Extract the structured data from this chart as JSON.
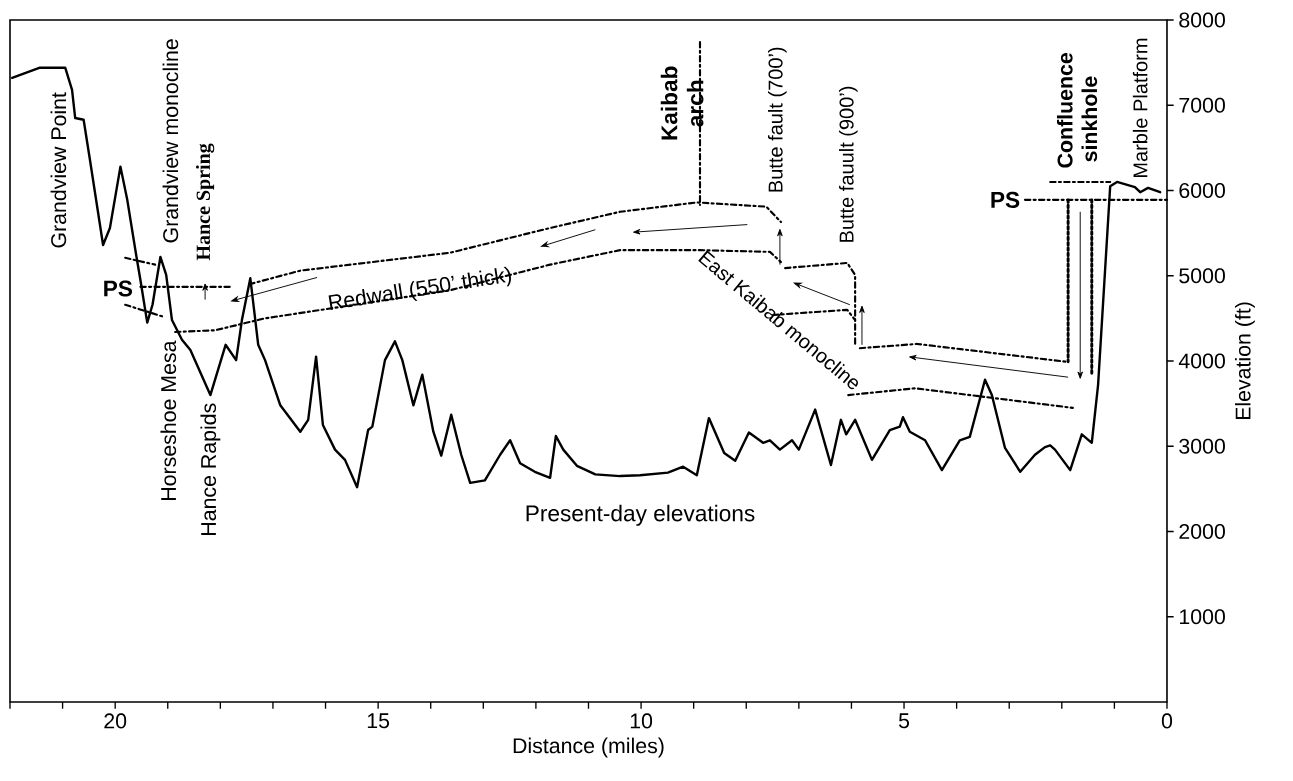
{
  "chart_data": {
    "type": "line",
    "xlabel": "Distance (miles)",
    "ylabel": "Elevation (ft)",
    "xlim": [
      22,
      0
    ],
    "ylim": [
      0,
      8000
    ],
    "xticks": [
      {
        "value": 22,
        "label": null
      },
      {
        "value": 21,
        "label": null
      },
      20,
      {
        "value": 19,
        "label": null
      },
      {
        "value": 18,
        "label": null
      },
      {
        "value": 17,
        "label": null
      },
      {
        "value": 16,
        "label": null
      },
      15,
      {
        "value": 14,
        "label": null
      },
      {
        "value": 13,
        "label": null
      },
      {
        "value": 12,
        "label": null
      },
      {
        "value": 11,
        "label": null
      },
      10,
      {
        "value": 9,
        "label": null
      },
      {
        "value": 8,
        "label": null
      },
      {
        "value": 7,
        "label": null
      },
      {
        "value": 6,
        "label": null
      },
      5,
      {
        "value": 4,
        "label": null
      },
      {
        "value": 3,
        "label": null
      },
      {
        "value": 2,
        "label": null
      },
      {
        "value": 1,
        "label": null
      },
      0
    ],
    "yticks": [
      1000,
      2000,
      3000,
      4000,
      5000,
      6000,
      7000,
      8000
    ],
    "series": [
      {
        "color": "#000000",
        "line_style": "solid",
        "x": [
          21.96,
          21.43,
          20.95,
          20.82,
          20.76,
          20.6,
          20.48,
          20.23,
          20.1,
          19.9,
          19.77,
          19.6,
          19.52,
          19.39,
          19.29,
          19.14,
          19.03,
          18.92,
          18.73,
          18.57,
          18.19,
          17.9,
          17.7,
          17.59,
          17.43,
          17.28,
          17.15,
          16.86,
          16.48,
          16.33,
          16.18,
          16.05,
          15.82,
          15.63,
          15.4,
          15.19,
          15.11,
          14.87,
          14.68,
          14.54,
          14.33,
          14.16,
          13.95,
          13.8,
          13.61,
          13.42,
          13.25,
          12.97,
          12.68,
          12.49,
          12.3,
          12.02,
          11.73,
          11.62,
          11.48,
          11.22,
          10.87,
          10.4,
          10.02,
          9.49,
          9.2,
          8.94,
          8.71,
          8.42,
          8.21,
          7.95,
          7.68,
          7.55,
          7.36,
          7.13,
          7.0,
          6.69,
          6.39,
          6.2,
          6.1,
          5.93,
          5.61,
          5.27,
          5.08,
          5.02,
          4.89,
          4.6,
          4.28,
          3.94,
          3.75,
          3.46,
          3.33,
          3.08,
          2.79,
          2.51,
          2.32,
          2.22,
          2.13,
          1.84,
          1.62,
          1.43,
          1.31,
          1.08,
          0.95,
          0.61,
          0.51,
          0.36,
          0.13
        ],
        "values": [
          7320,
          7440,
          7440,
          7180,
          6850,
          6830,
          6360,
          5360,
          5560,
          6280,
          5890,
          5240,
          4950,
          4450,
          4660,
          5220,
          5010,
          4480,
          4250,
          4130,
          3600,
          4190,
          4010,
          4480,
          4970,
          4190,
          4010,
          3480,
          3170,
          3310,
          4050,
          3250,
          2960,
          2840,
          2520,
          3190,
          3230,
          4010,
          4230,
          4010,
          3480,
          3840,
          3170,
          2890,
          3370,
          2900,
          2570,
          2600,
          2900,
          3070,
          2800,
          2700,
          2630,
          3120,
          2960,
          2770,
          2670,
          2650,
          2660,
          2690,
          2760,
          2660,
          3330,
          2920,
          2830,
          3160,
          3040,
          3070,
          2960,
          3070,
          2960,
          3430,
          2780,
          3310,
          3140,
          3310,
          2840,
          3190,
          3230,
          3340,
          3170,
          3070,
          2720,
          3070,
          3110,
          3780,
          3600,
          2980,
          2700,
          2900,
          2990,
          3010,
          2960,
          2720,
          3140,
          3040,
          3720,
          6050,
          6100,
          6040,
          5980,
          6030,
          5980
        ]
      },
      {
        "color": "#000000",
        "line_style": "dashed",
        "x": [
          17.45,
          16.48,
          13.63,
          11.73,
          10.4,
          8.94,
          7.62,
          7.34
        ],
        "values": [
          4900,
          5060,
          5270,
          5560,
          5750,
          5860,
          5810,
          5630
        ]
      },
      {
        "color": "#000000",
        "line_style": "dashed",
        "x": [
          18.86,
          18.1,
          17.15,
          13.63,
          11.73,
          10.4,
          8.88,
          7.55,
          7.34
        ],
        "values": [
          4340,
          4360,
          4500,
          4830,
          5130,
          5300,
          5300,
          5280,
          5160
        ]
      },
      {
        "color": "#000000",
        "line_style": "dashed",
        "x": [
          7.26,
          6.08,
          5.93,
          5.93
        ],
        "values": [
          5090,
          5150,
          5010,
          4190
        ]
      },
      {
        "color": "#000000",
        "line_style": "dashed",
        "x": [
          7.49,
          6.08,
          5.93
        ],
        "values": [
          4540,
          4600,
          4480
        ]
      },
      {
        "color": "#000000",
        "line_style": "dashed",
        "x": [
          5.84,
          4.75,
          1.9
        ],
        "values": [
          4150,
          4200,
          3990
        ]
      },
      {
        "color": "#000000",
        "line_style": "dashed",
        "x": [
          6.06,
          4.79,
          1.79
        ],
        "values": [
          3600,
          3680,
          3450
        ]
      },
      {
        "color": "#000000",
        "line_style": "dashed",
        "x": [
          19.81,
          19.24
        ],
        "values": [
          5210,
          5130
        ]
      },
      {
        "color": "#000000",
        "line_style": "dashed",
        "x": [
          19.81,
          19.09
        ],
        "values": [
          4660,
          4520
        ]
      },
      {
        "color": "#000000",
        "line_style": "dashed",
        "x": [
          8.88,
          8.88
        ],
        "values": [
          7740,
          5830
        ]
      },
      {
        "color": "#000000",
        "line_style": "dashed",
        "x": [
          2.7,
          0
        ],
        "values": [
          5890,
          5890
        ]
      },
      {
        "color": "#000000",
        "line_style": "dashed",
        "x": [
          19.52,
          17.8
        ],
        "values": [
          4870,
          4870
        ]
      },
      {
        "color": "#000000",
        "line_style": "dotted",
        "x": [
          1.88,
          1.88
        ],
        "values": [
          5890,
          3990
        ]
      },
      {
        "color": "#000000",
        "line_style": "dotted",
        "x": [
          1.43,
          1.43
        ],
        "values": [
          5890,
          3840
        ]
      },
      {
        "color": "#000000",
        "line_style": "dashed",
        "x": [
          2.22,
          1.08
        ],
        "values": [
          6100,
          6100
        ]
      }
    ],
    "annotations": [
      "Grandview Point",
      "Grandview monocline",
      "Hance Spring",
      "Horseshoe Mesa",
      "Hance Rapids",
      "PS",
      "Redwall (550’ thick)",
      "Kaibab arch",
      "Butte fault (700’)",
      "Butte fauult (900’)",
      "East Kaibab monocline",
      "Confluence sinkhole",
      "Marble Platform",
      "PS",
      "Present-day elevations"
    ]
  }
}
